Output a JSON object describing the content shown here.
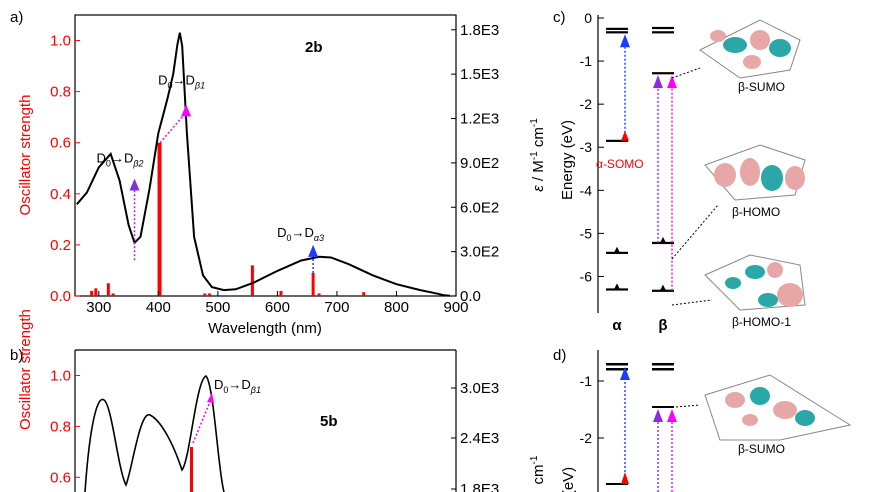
{
  "colors": {
    "strength": "#ff0000",
    "spectrum": "#000000",
    "alpha_arrow": "#1a3cff",
    "beta_arrow_violet": "#8a2be2",
    "beta_arrow_magenta": "#ff00ff",
    "somo_label": "#ff0000"
  },
  "panel_labels": {
    "a": "a)",
    "b": "b)",
    "c": "c)",
    "d": "d)"
  },
  "chart_data": [
    {
      "id": "a",
      "type": "bar+line",
      "compound": "2b",
      "xlabel": "Wavelength (nm)",
      "ylabel_left": "Oscillator strength",
      "ylabel_right_symbol": "ε",
      "ylabel_right_unit": " / M",
      "ylabel_right_sup1": "-1",
      "ylabel_right_mid": " cm",
      "ylabel_right_sup2": "-1",
      "xlim": [
        260,
        900
      ],
      "ylim_left": [
        0,
        1.1
      ],
      "ylim_right": [
        0,
        1900
      ],
      "x_ticks": [
        "300",
        "400",
        "500",
        "600",
        "700",
        "800",
        "900"
      ],
      "x_tick_values": [
        300,
        400,
        500,
        600,
        700,
        800,
        900
      ],
      "y_left_ticks": [
        "0.0",
        "0.2",
        "0.4",
        "0.6",
        "0.8",
        "1.0"
      ],
      "y_left_tick_values": [
        0,
        0.2,
        0.4,
        0.6,
        0.8,
        1.0
      ],
      "y_right_ticks": [
        "0.0",
        "3.0E2",
        "6.0E2",
        "9.0E2",
        "1.2E3",
        "1.5E3",
        "1.8E3"
      ],
      "y_right_tick_values": [
        0,
        300,
        600,
        900,
        1200,
        1500,
        1800
      ],
      "bars": [
        {
          "x": 288,
          "y": 0.02
        },
        {
          "x": 295,
          "y": 0.03
        },
        {
          "x": 316,
          "y": 0.05
        },
        {
          "x": 324,
          "y": 0.01
        },
        {
          "x": 402,
          "y": 0.6
        },
        {
          "x": 478,
          "y": 0.01
        },
        {
          "x": 486,
          "y": 0.01
        },
        {
          "x": 558,
          "y": 0.12
        },
        {
          "x": 606,
          "y": 0.02
        },
        {
          "x": 660,
          "y": 0.09
        },
        {
          "x": 670,
          "y": 0.01
        },
        {
          "x": 745,
          "y": 0.015
        }
      ],
      "spectrum": [
        [
          263,
          620
        ],
        [
          280,
          700
        ],
        [
          300,
          870
        ],
        [
          320,
          960
        ],
        [
          335,
          780
        ],
        [
          350,
          480
        ],
        [
          360,
          360
        ],
        [
          370,
          400
        ],
        [
          385,
          720
        ],
        [
          400,
          1100
        ],
        [
          415,
          1330
        ],
        [
          425,
          1500
        ],
        [
          432,
          1700
        ],
        [
          436,
          1780
        ],
        [
          440,
          1690
        ],
        [
          448,
          1100
        ],
        [
          460,
          400
        ],
        [
          475,
          140
        ],
        [
          490,
          60
        ],
        [
          510,
          40
        ],
        [
          530,
          45
        ],
        [
          560,
          90
        ],
        [
          600,
          170
        ],
        [
          640,
          240
        ],
        [
          670,
          265
        ],
        [
          690,
          260
        ],
        [
          720,
          215
        ],
        [
          760,
          140
        ],
        [
          800,
          80
        ],
        [
          840,
          40
        ],
        [
          870,
          15
        ],
        [
          880,
          5
        ],
        [
          890,
          2
        ]
      ],
      "annotations": [
        {
          "base": "D",
          "sub1": "0",
          "arrow": "→D",
          "sub2": "β2",
          "x": 360,
          "from": 0.14,
          "to": 0.46,
          "color": "#8a2be2"
        },
        {
          "base": "D",
          "sub1": "0",
          "arrow": "→D",
          "sub2": "β1",
          "x": 403,
          "from": 0.6,
          "to": 0.75,
          "color": "#ff00ff"
        },
        {
          "base": "D",
          "sub1": "0",
          "arrow": "→D",
          "sub2": "α3",
          "x": 660,
          "from": 0.09,
          "to": 0.2,
          "color": "#1a3cff"
        }
      ]
    },
    {
      "id": "b",
      "type": "bar+line",
      "compound": "5b",
      "ylabel_left": "Oscillator strength",
      "ylabel_right_unit": "cm",
      "ylabel_right_sup": "-1",
      "y_left_ticks": [
        "0.6",
        "0.8",
        "1.0"
      ],
      "y_left_tick_values": [
        0.6,
        0.8,
        1.0
      ],
      "y_right_ticks": [
        "1.8E3",
        "2.4E3",
        "3.0E3"
      ],
      "annotation": {
        "base": "D",
        "sub1": "0",
        "arrow": "→D",
        "sub2": "β1",
        "color": "#ff00ff"
      }
    },
    {
      "id": "c",
      "type": "energy-level-diagram",
      "ylabel": "Energy (eV)",
      "ylim": [
        -6.5,
        0
      ],
      "y_ticks": [
        "0",
        "-1",
        "-2",
        "-3",
        "-4",
        "-5",
        "-6"
      ],
      "y_tick_values": [
        0,
        -1,
        -2,
        -3,
        -4,
        -5,
        -6
      ],
      "columns": [
        "α",
        "β"
      ],
      "alpha_levels": [
        -0.25,
        -0.33,
        -2.85,
        -5.45,
        -6.3
      ],
      "beta_levels": [
        -0.23,
        -0.33,
        -1.28,
        -5.22,
        -6.33
      ],
      "orbital_labels": {
        "somo": "α-SOMO",
        "sumo": "β-SUMO",
        "homo": "β-HOMO",
        "homo1": "β-HOMO-1"
      }
    },
    {
      "id": "d",
      "type": "energy-level-diagram",
      "ylabel": "(eV)",
      "y_ticks": [
        "-1",
        "-2"
      ],
      "orbital_labels": {
        "sumo": "β-SUMO"
      }
    }
  ]
}
